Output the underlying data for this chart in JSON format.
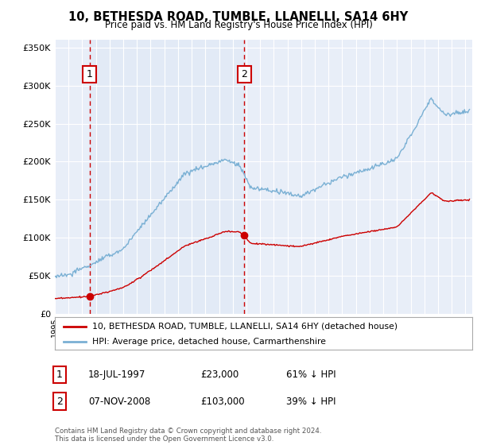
{
  "title": "10, BETHESDA ROAD, TUMBLE, LLANELLI, SA14 6HY",
  "subtitle": "Price paid vs. HM Land Registry's House Price Index (HPI)",
  "background_color": "#e8eef8",
  "plot_bg_color": "#e8eef8",
  "legend_label_red": "10, BETHESDA ROAD, TUMBLE, LLANELLI, SA14 6HY (detached house)",
  "legend_label_blue": "HPI: Average price, detached house, Carmarthenshire",
  "transaction1_label": "1",
  "transaction1_date": "18-JUL-1997",
  "transaction1_price": "£23,000",
  "transaction1_pct": "61% ↓ HPI",
  "transaction2_label": "2",
  "transaction2_date": "07-NOV-2008",
  "transaction2_price": "£103,000",
  "transaction2_pct": "39% ↓ HPI",
  "footer": "Contains HM Land Registry data © Crown copyright and database right 2024.\nThis data is licensed under the Open Government Licence v3.0.",
  "ylim": [
    0,
    360000
  ],
  "yticks": [
    0,
    50000,
    100000,
    150000,
    200000,
    250000,
    300000,
    350000
  ],
  "ytick_labels": [
    "£0",
    "£50K",
    "£100K",
    "£150K",
    "£200K",
    "£250K",
    "£300K",
    "£350K"
  ],
  "transaction1_x": 1997.54,
  "transaction1_y": 23000,
  "transaction2_x": 2008.85,
  "transaction2_y": 103000,
  "red_color": "#cc0000",
  "blue_color": "#7ab0d4",
  "xlim_left": 1995.0,
  "xlim_right": 2025.5
}
